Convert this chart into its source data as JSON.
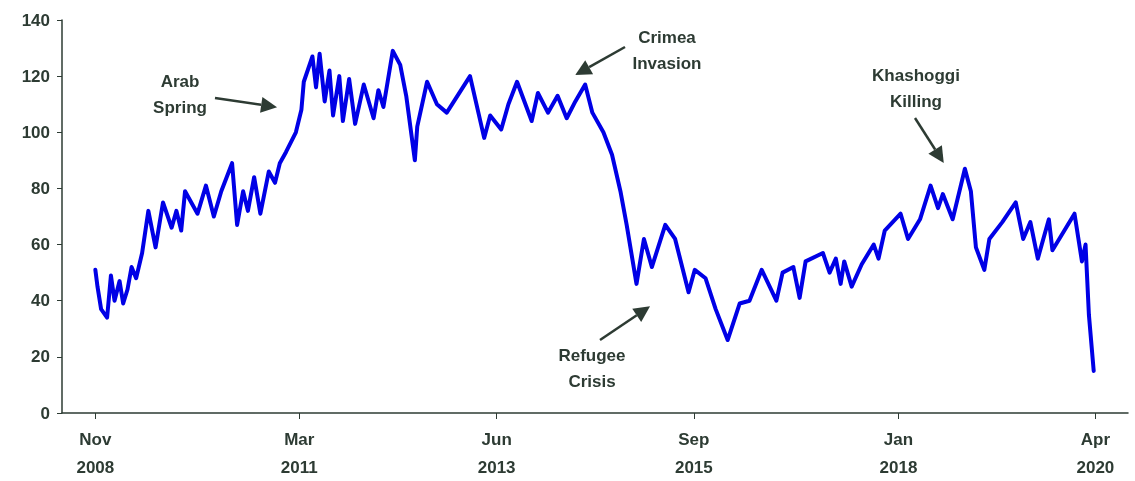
{
  "chart_data": {
    "type": "line",
    "xlim": [
      "2008-06-15",
      "2020-08-15"
    ],
    "ylim": [
      0,
      140
    ],
    "yticks": [
      0,
      20,
      40,
      60,
      80,
      100,
      120,
      140
    ],
    "xticks": [
      {
        "value": "2008-11",
        "label": "Nov\n2008"
      },
      {
        "value": "2011-03",
        "label": "Mar\n2011"
      },
      {
        "value": "2013-06",
        "label": "Jun\n2013"
      },
      {
        "value": "2015-09",
        "label": "Sep\n2015"
      },
      {
        "value": "2018-01",
        "label": "Jan\n2018"
      },
      {
        "value": "2020-04",
        "label": "Apr\n2020"
      }
    ],
    "grid": false,
    "marker": "none",
    "line_style": "solid",
    "annotations": [
      "Arab Spring",
      "Crimea Invasion",
      "Refugee Crisis",
      "Khashoggi Killing"
    ],
    "series": [
      {
        "color": "#0000e6",
        "x": [
          "2008-11-01",
          "2008-11-10",
          "2008-11-25",
          "2008-12-20",
          "2009-01-05",
          "2009-01-20",
          "2009-02-10",
          "2009-02-25",
          "2009-03-15",
          "2009-04-01",
          "2009-04-20",
          "2009-05-15",
          "2009-06-10",
          "2009-07-10",
          "2009-08-10",
          "2009-09-15",
          "2009-10-05",
          "2009-10-25",
          "2009-11-10",
          "2010-01-01",
          "2010-02-05",
          "2010-03-10",
          "2010-04-10",
          "2010-05-25",
          "2010-06-15",
          "2010-07-10",
          "2010-07-30",
          "2010-08-25",
          "2010-09-20",
          "2010-10-25",
          "2010-11-20",
          "2010-12-10",
          "2011-01-05",
          "2011-02-15",
          "2011-03-10",
          "2011-03-20",
          "2011-04-25",
          "2011-05-10",
          "2011-05-25",
          "2011-06-15",
          "2011-07-05",
          "2011-07-20",
          "2011-08-15",
          "2011-08-30",
          "2011-09-25",
          "2011-10-20",
          "2011-11-25",
          "2012-01-05",
          "2012-01-25",
          "2012-02-15",
          "2012-03-25",
          "2012-04-25",
          "2012-05-20",
          "2012-06-25",
          "2012-07-05",
          "2012-08-15",
          "2012-09-25",
          "2012-11-05",
          "2013-02-10",
          "2013-04-10",
          "2013-05-05",
          "2013-06-20",
          "2013-07-20",
          "2013-08-25",
          "2013-10-25",
          "2013-11-20",
          "2014-01-01",
          "2014-02-10",
          "2014-03-20",
          "2014-04-25",
          "2014-06-05",
          "2014-07-05",
          "2014-08-20",
          "2014-09-25",
          "2014-10-30",
          "2014-11-25",
          "2015-01-05",
          "2015-02-05",
          "2015-03-10",
          "2015-05-05",
          "2015-06-15",
          "2015-08-10",
          "2015-09-05",
          "2015-10-20",
          "2015-12-01",
          "2016-01-20",
          "2016-03-10",
          "2016-04-20",
          "2016-06-10",
          "2016-08-10",
          "2016-09-05",
          "2016-10-20",
          "2016-11-15",
          "2016-12-10",
          "2017-02-20",
          "2017-03-20",
          "2017-04-15",
          "2017-05-05",
          "2017-05-20",
          "2017-06-20",
          "2017-08-01",
          "2017-09-20",
          "2017-10-10",
          "2017-11-05",
          "2018-01-10",
          "2018-02-10",
          "2018-04-01",
          "2018-05-15",
          "2018-06-15",
          "2018-07-05",
          "2018-08-15",
          "2018-10-05",
          "2018-10-30",
          "2018-11-20",
          "2018-12-25",
          "2019-01-15",
          "2019-03-10",
          "2019-05-05",
          "2019-06-05",
          "2019-07-05",
          "2019-08-05",
          "2019-09-20",
          "2019-10-05",
          "2020-01-05",
          "2020-02-05",
          "2020-02-20",
          "2020-03-05",
          "2020-03-25"
        ],
        "values": [
          51,
          45,
          37,
          34,
          49,
          40,
          47,
          39,
          44,
          52,
          48,
          57,
          72,
          59,
          75,
          66,
          72,
          65,
          79,
          71,
          81,
          70,
          79,
          89,
          67,
          79,
          72,
          84,
          71,
          86,
          82,
          89,
          93,
          100,
          108,
          118,
          127,
          116,
          128,
          111,
          122,
          106,
          120,
          104,
          119,
          103,
          117,
          105,
          115,
          109,
          129,
          124,
          113,
          90,
          102,
          118,
          110,
          107,
          120,
          98,
          106,
          101,
          110,
          118,
          104,
          114,
          107,
          113,
          105,
          111,
          117,
          107,
          100,
          92,
          79,
          67,
          46,
          62,
          52,
          67,
          62,
          43,
          51,
          48,
          37,
          26,
          39,
          40,
          51,
          40,
          50,
          52,
          41,
          54,
          57,
          50,
          55,
          46,
          54,
          45,
          53,
          60,
          55,
          65,
          71,
          62,
          69,
          81,
          73,
          78,
          69,
          87,
          79,
          59,
          51,
          62,
          68,
          75,
          62,
          68,
          55,
          69,
          58,
          71,
          54,
          60,
          35,
          15
        ]
      }
    ]
  }
}
